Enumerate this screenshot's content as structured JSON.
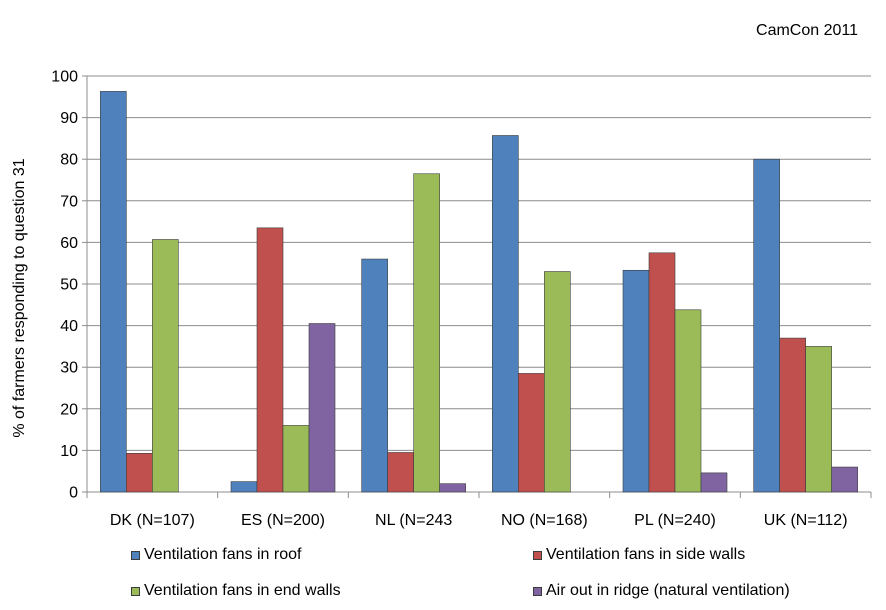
{
  "credit": "CamCon 2011",
  "chart_data": {
    "type": "bar",
    "title": "",
    "xlabel": "",
    "ylabel": "% of farmers responding to question 31",
    "ylim": [
      0,
      100
    ],
    "yticks": [
      0,
      10,
      20,
      30,
      40,
      50,
      60,
      70,
      80,
      90,
      100
    ],
    "grid": true,
    "legend_position": "bottom",
    "categories": [
      "DK (N=107)",
      "ES (N=200)",
      "NL (N=243",
      "NO (N=168)",
      "PL (N=240)",
      "UK (N=112)"
    ],
    "series": [
      {
        "name": "Ventilation fans in roof",
        "color": "#4f81bd",
        "values": [
          96.3,
          2.5,
          56.0,
          85.7,
          53.3,
          80.0
        ]
      },
      {
        "name": "Ventilation fans in side walls",
        "color": "#c0504d",
        "values": [
          9.3,
          63.5,
          9.5,
          28.5,
          57.5,
          37.0
        ]
      },
      {
        "name": "Ventilation fans in end walls",
        "color": "#9bbb59",
        "values": [
          60.7,
          16.0,
          76.5,
          53.0,
          43.8,
          35.0
        ]
      },
      {
        "name": "Air out in ridge (natural ventilation)",
        "color": "#8064a2",
        "values": [
          0,
          40.5,
          2.0,
          0,
          4.6,
          6.0
        ]
      }
    ]
  }
}
